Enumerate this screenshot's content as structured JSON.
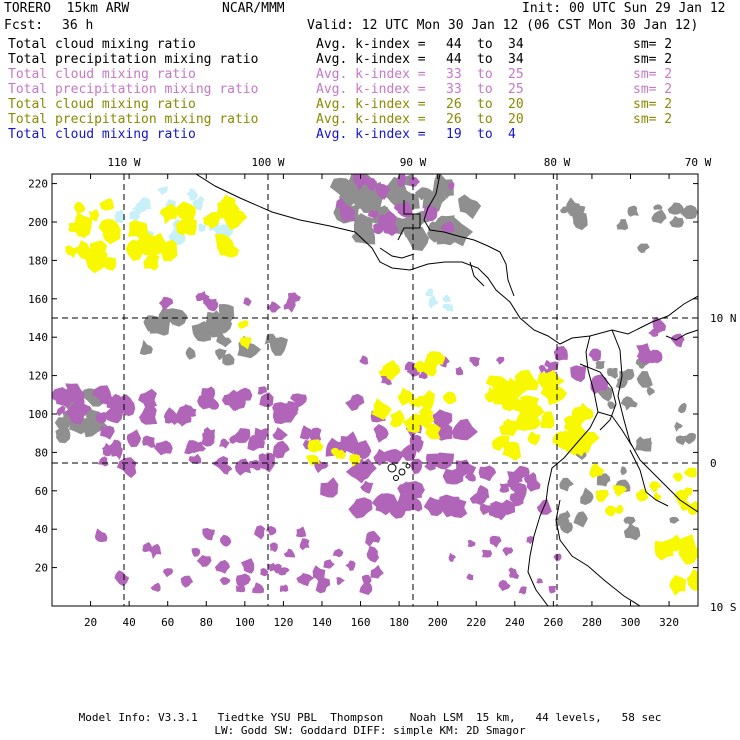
{
  "header": {
    "model": "TORERO  15km ARW",
    "center": "NCAR/MMM",
    "init": "Init: 00 UTC Sun 29 Jan 12",
    "fcst_label": "Fcst:",
    "fcst_value": "36 h",
    "valid": "Valid: 12 UTC Mon 30 Jan 12 (06 CST Mon 30 Jan 12)"
  },
  "legend": [
    {
      "variable": "Total cloud mixing ratio",
      "index_label": "Avg. k-index =",
      "from": "44",
      "to_word": "to",
      "to": "34",
      "smoothing": "sm= 2",
      "color": "#000000"
    },
    {
      "variable": "Total precipitation mixing ratio",
      "index_label": "Avg. k-index =",
      "from": "44",
      "to_word": "to",
      "to": "34",
      "smoothing": "sm= 2",
      "color": "#000000"
    },
    {
      "variable": "Total cloud mixing ratio",
      "index_label": "Avg. k-index =",
      "from": "33",
      "to_word": "to",
      "to": "25",
      "smoothing": "sm= 2",
      "color": "#c678c6"
    },
    {
      "variable": "Total precipitation mixing ratio",
      "index_label": "Avg. k-index =",
      "from": "33",
      "to_word": "to",
      "to": "25",
      "smoothing": "sm= 2",
      "color": "#c678c6"
    },
    {
      "variable": "Total cloud mixing ratio",
      "index_label": "Avg. k-index =",
      "from": "26",
      "to_word": "to",
      "to": "20",
      "smoothing": "sm= 2",
      "color": "#8a8a00"
    },
    {
      "variable": "Total precipitation mixing ratio",
      "index_label": "Avg. k-index =",
      "from": "26",
      "to_word": "to",
      "to": "20",
      "smoothing": "sm= 2",
      "color": "#8a8a00"
    },
    {
      "variable": "Total cloud mixing ratio",
      "index_label": "Avg. k-index =",
      "from": "19",
      "to_word": "to",
      "to": "4",
      "smoothing": "",
      "color": "#1414d2"
    }
  ],
  "map": {
    "top_longitude_labels": [
      "110 W",
      "100 W",
      "90 W",
      "80 W",
      "70 W"
    ],
    "right_latitude_labels": [
      "10 N",
      "0",
      "10 S"
    ],
    "x_grid_ticks": [
      "20",
      "40",
      "60",
      "80",
      "100",
      "120",
      "140",
      "160",
      "180",
      "200",
      "220",
      "240",
      "260",
      "280",
      "300",
      "320"
    ],
    "y_grid_ticks": [
      "20",
      "40",
      "60",
      "80",
      "100",
      "120",
      "140",
      "160",
      "180",
      "200",
      "220"
    ],
    "x_range": [
      0,
      335
    ],
    "y_range": [
      0,
      225
    ],
    "colors": {
      "cloud_gray": "#8f8f8f",
      "purple": "#b065b8",
      "yellow": "#f8f800",
      "light_cyan": "#c8f0f8",
      "coastline": "#000000",
      "lat_lon_lines": "#000000"
    }
  },
  "footer": {
    "line1": "Model Info: V3.3.1   Tiedtke YSU PBL  Thompson    Noah LSM  15 km,   44 levels,   58 sec",
    "line2": "LW: Godd SW: Goddard DIFF: simple KM: 2D Smagor"
  }
}
